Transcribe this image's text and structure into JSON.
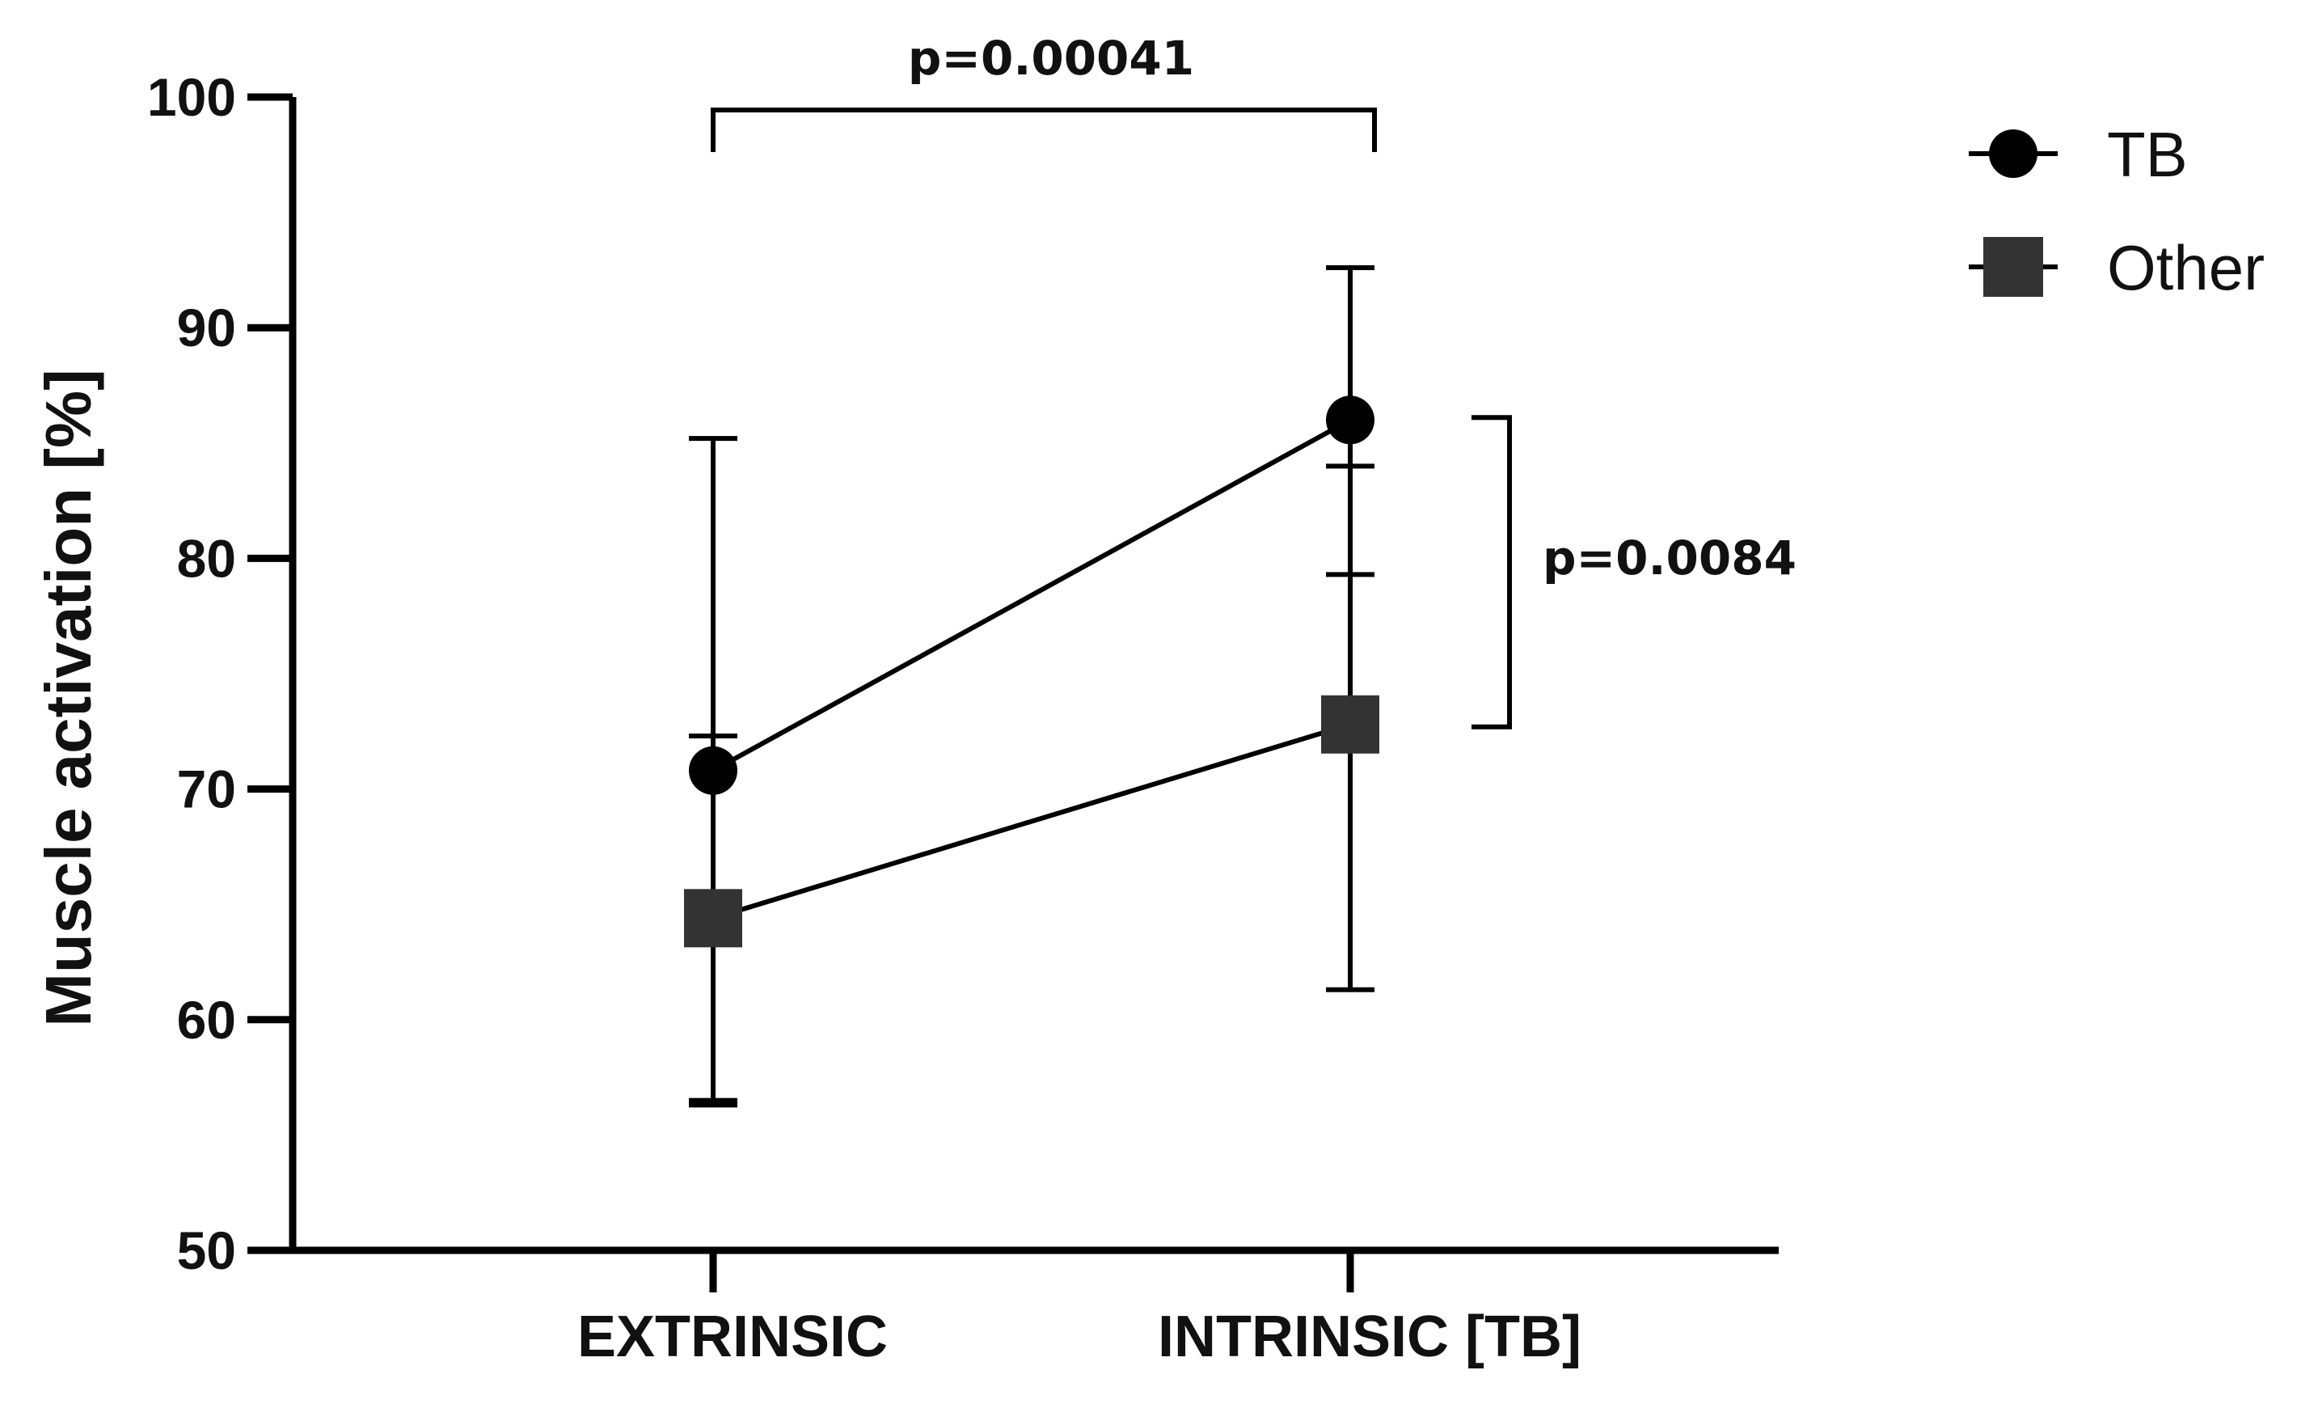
{
  "chart_data": {
    "type": "line",
    "title": "",
    "xlabel": "",
    "ylabel": "Muscle activation [%]",
    "ylim": [
      50,
      100
    ],
    "yticks": [
      50,
      60,
      70,
      80,
      90,
      100
    ],
    "categories": [
      "EXTRINSIC",
      "INTRINSIC [TB]"
    ],
    "grid": false,
    "legend_position": "top-right",
    "series": [
      {
        "name": "TB",
        "marker": "circle",
        "color": "#000000",
        "values": [
          70.8,
          86.0
        ],
        "error_low": [
          56.3,
          79.3
        ],
        "error_high": [
          85.2,
          92.6
        ]
      },
      {
        "name": "Other",
        "marker": "square",
        "color": "#333333",
        "values": [
          64.4,
          72.8
        ],
        "error_low": [
          56.5,
          61.3
        ],
        "error_high": [
          72.3,
          84.0
        ]
      }
    ],
    "annotations": [
      {
        "text": "p=0.00041",
        "between": "EXTRINSIC vs INTRINSIC [TB]"
      },
      {
        "text": "p=0.0084",
        "between": "TB vs Other at INTRINSIC [TB]"
      }
    ]
  }
}
